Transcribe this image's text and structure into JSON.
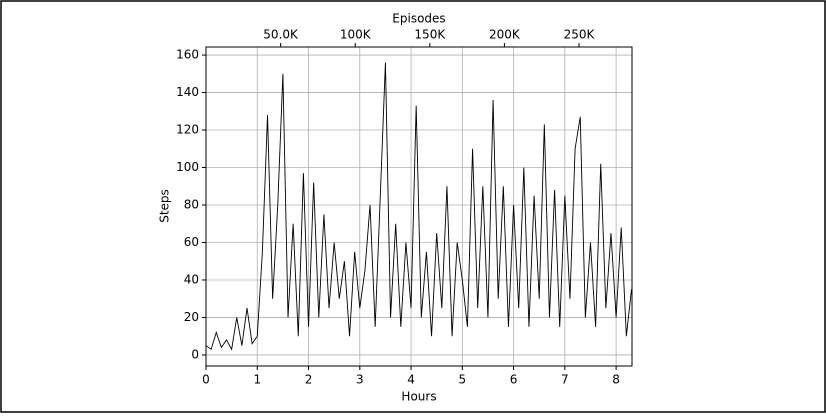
{
  "chart_data": {
    "type": "line",
    "xlabel": "Hours",
    "ylabel": "Steps",
    "x2label": "Episodes",
    "x": [
      0,
      0.1,
      0.2,
      0.3,
      0.4,
      0.5,
      0.6,
      0.7,
      0.8,
      0.9,
      1,
      1.1,
      1.2,
      1.3,
      1.4,
      1.5,
      1.6,
      1.7,
      1.8,
      1.9,
      2,
      2.1,
      2.2,
      2.3,
      2.4,
      2.5,
      2.6,
      2.7,
      2.8,
      2.9,
      3,
      3.1,
      3.2,
      3.3,
      3.4,
      3.5,
      3.6,
      3.7,
      3.8,
      3.9,
      4,
      4.1,
      4.2,
      4.3,
      4.4,
      4.5,
      4.6,
      4.7,
      4.8,
      4.9,
      5,
      5.1,
      5.2,
      5.3,
      5.4,
      5.5,
      5.6,
      5.7,
      5.8,
      5.9,
      6,
      6.1,
      6.2,
      6.3,
      6.4,
      6.5,
      6.6,
      6.7,
      6.8,
      6.9,
      7,
      7.1,
      7.2,
      7.3,
      7.4,
      7.5,
      7.6,
      7.7,
      7.8,
      7.9,
      8,
      8.1,
      8.2,
      8.3
    ],
    "values": [
      5,
      3,
      12,
      4,
      8,
      3,
      20,
      5,
      25,
      6,
      10,
      55,
      128,
      30,
      80,
      150,
      20,
      70,
      10,
      97,
      15,
      92,
      20,
      75,
      25,
      60,
      30,
      50,
      10,
      55,
      25,
      45,
      80,
      15,
      85,
      156,
      20,
      70,
      15,
      60,
      25,
      133,
      20,
      55,
      10,
      65,
      25,
      90,
      10,
      60,
      40,
      15,
      110,
      25,
      90,
      20,
      136,
      30,
      90,
      15,
      80,
      25,
      100,
      15,
      85,
      30,
      123,
      20,
      88,
      15,
      85,
      30,
      110,
      127,
      20,
      60,
      15,
      102,
      25,
      65,
      20,
      68,
      10,
      35
    ],
    "color": "#000000",
    "xlim": [
      0,
      8.31
    ],
    "xticks": [
      0,
      1,
      2,
      3,
      4,
      5,
      6,
      7,
      8
    ],
    "ylim": [
      -5.9,
      164.3
    ],
    "yticks": [
      0,
      20,
      40,
      60,
      80,
      100,
      120,
      140,
      160
    ],
    "x2lim": [
      0,
      285500
    ],
    "x2ticks": [
      {
        "value": 50000,
        "label": "50.0K"
      },
      {
        "value": 100000,
        "label": "100K"
      },
      {
        "value": 150000,
        "label": "150K"
      },
      {
        "value": 200000,
        "label": "200K"
      },
      {
        "value": 250000,
        "label": "250K"
      }
    ],
    "grid": true
  }
}
